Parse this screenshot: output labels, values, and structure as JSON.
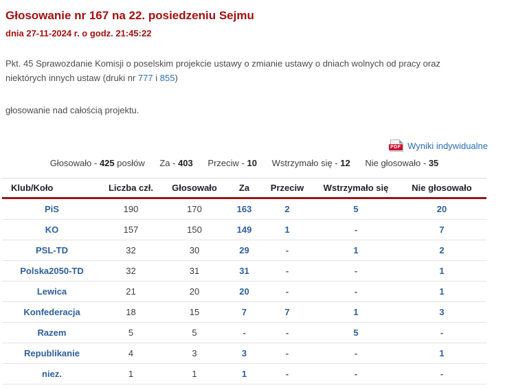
{
  "header": {
    "title": "Głosowanie nr 167 na 22. posiedzeniu Sejmu",
    "date_line": "dnia 27-11-2024 r. o godz. 21:45:22"
  },
  "description": {
    "text_before_links": "Pkt. 45 Sprawozdanie Komisji o poselskim projekcie ustawy o zmianie ustawy o dniach wolnych od pracy oraz niektórych innych ustaw (druki nr ",
    "link1": "777",
    "separator": " i ",
    "link2": "855",
    "text_after_links": ")",
    "subject_line": "głosowanie nad całością projektu."
  },
  "results_link": {
    "pdf_badge": "PDF",
    "label": "Wyniki indywidualne"
  },
  "summary": {
    "items": [
      {
        "label": "Głosowało - ",
        "value": "425",
        "suffix": " posłów"
      },
      {
        "label": "Za - ",
        "value": "403",
        "suffix": ""
      },
      {
        "label": "Przeciw - ",
        "value": "10",
        "suffix": ""
      },
      {
        "label": "Wstrzymało się - ",
        "value": "12",
        "suffix": ""
      },
      {
        "label": "Nie głosowało - ",
        "value": "35",
        "suffix": ""
      }
    ]
  },
  "table": {
    "columns": [
      "Klub/Koło",
      "Liczba czł.",
      "Głosowało",
      "Za",
      "Przeciw",
      "Wstrzymało się",
      "Nie głosowało"
    ],
    "rows": [
      {
        "club": "PiS",
        "members": "190",
        "voted": "170",
        "for": "163",
        "against": "2",
        "abstained": "5",
        "not_voted": "20"
      },
      {
        "club": "KO",
        "members": "157",
        "voted": "150",
        "for": "149",
        "against": "1",
        "abstained": "-",
        "not_voted": "7"
      },
      {
        "club": "PSL-TD",
        "members": "32",
        "voted": "30",
        "for": "29",
        "against": "-",
        "abstained": "1",
        "not_voted": "2"
      },
      {
        "club": "Polska2050-TD",
        "members": "32",
        "voted": "31",
        "for": "31",
        "against": "-",
        "abstained": "-",
        "not_voted": "1"
      },
      {
        "club": "Lewica",
        "members": "21",
        "voted": "20",
        "for": "20",
        "against": "-",
        "abstained": "-",
        "not_voted": "1"
      },
      {
        "club": "Konfederacja",
        "members": "18",
        "voted": "15",
        "for": "7",
        "against": "7",
        "abstained": "1",
        "not_voted": "3"
      },
      {
        "club": "Razem",
        "members": "5",
        "voted": "5",
        "for": "-",
        "against": "-",
        "abstained": "5",
        "not_voted": "-"
      },
      {
        "club": "Republikanie",
        "members": "4",
        "voted": "3",
        "for": "3",
        "against": "-",
        "abstained": "-",
        "not_voted": "1"
      },
      {
        "club": "niez.",
        "members": "1",
        "voted": "1",
        "for": "1",
        "against": "-",
        "abstained": "-",
        "not_voted": "-"
      }
    ]
  },
  "colors": {
    "title_red": "#a50f0f",
    "header_rule_red": "#941616",
    "link_blue": "#2a6db8",
    "club_blue": "#2d5f9e",
    "text_gray": "#4c4c4c",
    "header_text": "#20202c",
    "row_divider": "#e3e3e3",
    "pdf_badge_red": "#c8102e"
  }
}
